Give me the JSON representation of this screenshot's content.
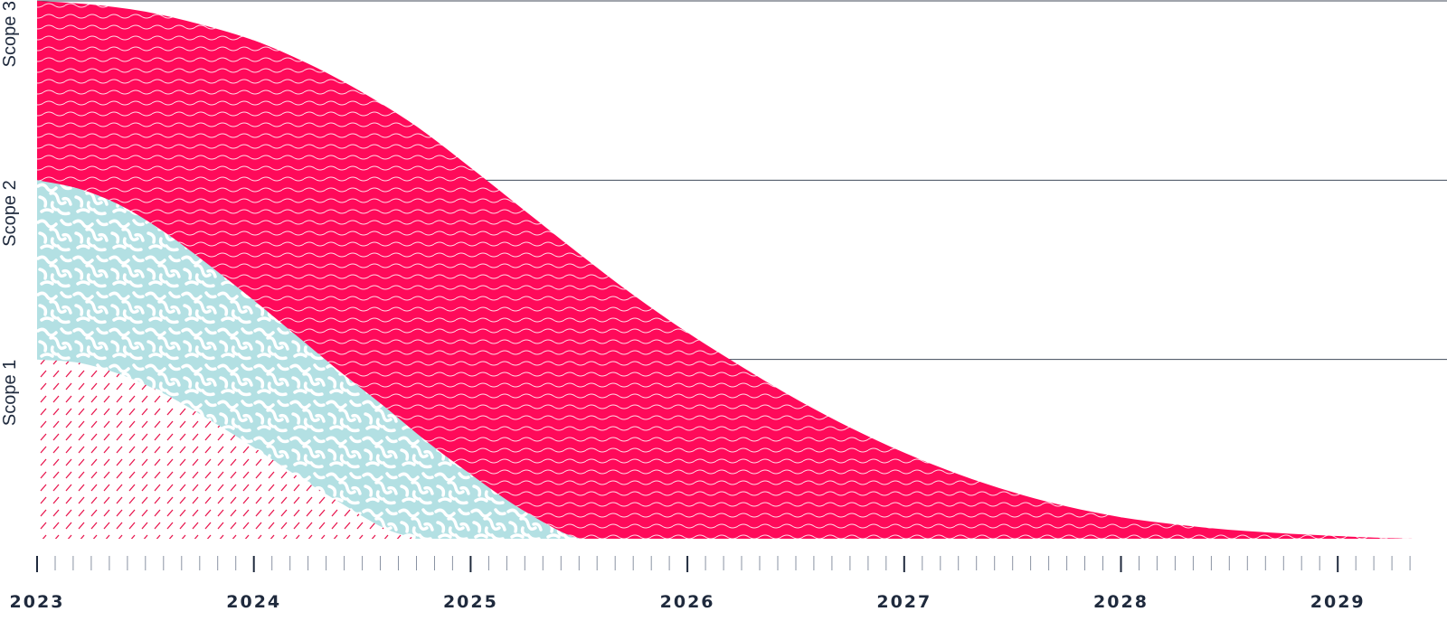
{
  "chart_data": {
    "type": "area",
    "title": "",
    "x_ticks": [
      "2023",
      "2024",
      "2025",
      "2026",
      "2027",
      "2028",
      "2029"
    ],
    "minor_ticks_per_year": 12,
    "y_bands": [
      "Scope 1",
      "Scope 2",
      "Scope 3"
    ],
    "ylim": [
      0,
      3
    ],
    "xlim": [
      2023,
      2029.35
    ],
    "grid": true,
    "series": [
      {
        "band": "Scope 1",
        "fill": "#e8174f",
        "pattern": "diagonal-dashes",
        "x": [
          2023,
          2023.2,
          2023.4,
          2023.6,
          2023.8,
          2024,
          2024.2,
          2024.4,
          2024.6,
          2024.75
        ],
        "y": [
          1.0,
          0.98,
          0.91,
          0.8,
          0.66,
          0.51,
          0.35,
          0.2,
          0.06,
          0.0
        ]
      },
      {
        "band": "Scope 2",
        "fill": "#b3e0e3",
        "pattern": "maze",
        "x": [
          2023,
          2023.2,
          2023.4,
          2023.6,
          2023.8,
          2024,
          2024.2,
          2024.4,
          2024.6,
          2024.8,
          2025,
          2025.2,
          2025.4,
          2025.5
        ],
        "y": [
          2.0,
          1.95,
          1.85,
          1.7,
          1.52,
          1.33,
          1.13,
          0.93,
          0.74,
          0.54,
          0.36,
          0.19,
          0.05,
          0.0
        ]
      },
      {
        "band": "Scope 3",
        "fill": "#ff0a5a",
        "pattern": "waves",
        "x": [
          2023,
          2023.25,
          2023.5,
          2023.75,
          2024,
          2024.25,
          2024.5,
          2024.75,
          2025,
          2025.25,
          2025.5,
          2025.75,
          2026,
          2026.25,
          2026.5,
          2026.75,
          2027,
          2027.25,
          2027.5,
          2027.75,
          2028,
          2028.25,
          2028.5,
          2028.75,
          2029,
          2029.2,
          2029.35
        ],
        "y": [
          3.0,
          2.98,
          2.94,
          2.87,
          2.78,
          2.65,
          2.49,
          2.3,
          2.07,
          1.83,
          1.59,
          1.36,
          1.15,
          0.96,
          0.78,
          0.62,
          0.48,
          0.36,
          0.26,
          0.18,
          0.12,
          0.08,
          0.05,
          0.03,
          0.015,
          0.005,
          0.0
        ]
      }
    ]
  },
  "colors": {
    "axis": "#1f2a3d",
    "grid": "#1f2a3d",
    "tick_minor": "#8a93a3",
    "maze_background": "#ffffff",
    "wave_stroke": "#ffffff",
    "dash_stroke": "#e8174f"
  }
}
